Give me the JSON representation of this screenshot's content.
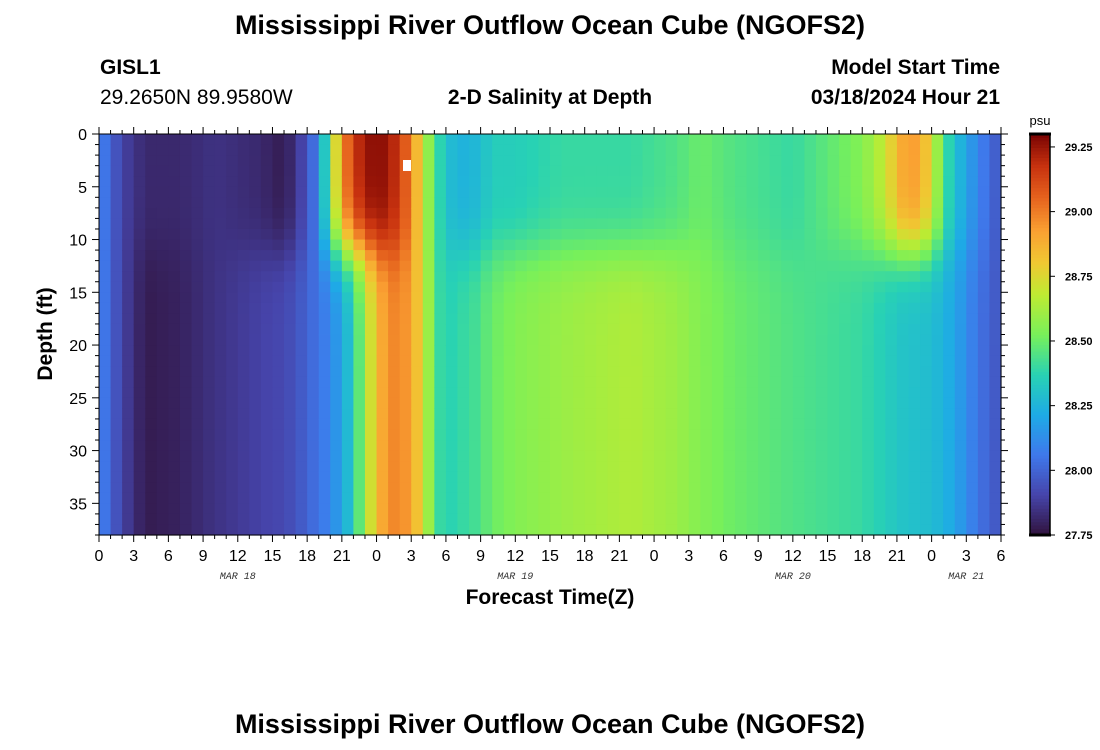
{
  "page": {
    "title_top": "Mississippi River Outflow Ocean Cube (NGOFS2)",
    "title_bottom": "Mississippi River Outflow Ocean Cube (NGOFS2)",
    "station_id": "GISL1",
    "station_coords": "29.2650N  89.9580W",
    "plot_title": "2-D Salinity at Depth",
    "model_start_label": "Model Start Time",
    "model_start_value": "03/18/2024 Hour 21"
  },
  "chart_data": {
    "type": "heatmap",
    "title": "2-D Salinity at Depth",
    "xlabel": "Forecast Time(Z)",
    "ylabel": "Depth (ft)",
    "xlim": [
      0,
      78
    ],
    "ylim": [
      38,
      0
    ],
    "x_tick_labels": [
      "0",
      "3",
      "6",
      "9",
      "12",
      "15",
      "18",
      "21",
      "0",
      "3",
      "6",
      "9",
      "12",
      "15",
      "18",
      "21",
      "0",
      "3",
      "6",
      "9",
      "12",
      "15",
      "18",
      "21",
      "0",
      "3",
      "6"
    ],
    "y_ticks": [
      0,
      5,
      10,
      15,
      20,
      25,
      30,
      35
    ],
    "date_labels": [
      {
        "label": "MAR 18",
        "hours": 12
      },
      {
        "label": "MAR 19",
        "hours": 36
      },
      {
        "label": "MAR 20",
        "hours": 60
      },
      {
        "label": "MAR 21",
        "hours": 75
      }
    ],
    "colorbar": {
      "unit": "psu",
      "min": 27.75,
      "max": 29.3,
      "ticks": [
        "27.75",
        "28.00",
        "28.25",
        "28.50",
        "28.75",
        "29.00",
        "29.25"
      ],
      "tick_values": [
        27.75,
        28.0,
        28.25,
        28.5,
        28.75,
        29.0,
        29.25
      ]
    },
    "series_time_hours": [
      0,
      1,
      2,
      4,
      7,
      10,
      14,
      16,
      17,
      18,
      19,
      20,
      21,
      22,
      23,
      24,
      25,
      26,
      27,
      28,
      29,
      30,
      31,
      32,
      33,
      34,
      36,
      40,
      46,
      50,
      52,
      55,
      60,
      66,
      68,
      69,
      70,
      71,
      72,
      73,
      74,
      76,
      78
    ],
    "surface_salinity_psu": [
      28.1,
      28.0,
      27.9,
      27.82,
      27.82,
      27.85,
      27.82,
      27.78,
      27.85,
      27.95,
      28.1,
      28.55,
      28.95,
      29.15,
      29.25,
      29.28,
      29.25,
      29.15,
      29.0,
      28.7,
      28.45,
      28.3,
      28.25,
      28.25,
      28.28,
      28.35,
      28.35,
      28.4,
      28.4,
      28.45,
      28.5,
      28.45,
      28.4,
      28.55,
      28.7,
      28.85,
      28.95,
      28.9,
      28.75,
      28.45,
      28.3,
      28.1,
      27.95
    ],
    "bottom_salinity_psu": [
      28.1,
      28.0,
      27.9,
      27.78,
      27.8,
      27.85,
      27.9,
      27.92,
      27.95,
      28.0,
      28.05,
      28.1,
      28.2,
      28.35,
      28.6,
      28.85,
      28.95,
      29.0,
      28.9,
      28.75,
      28.45,
      28.35,
      28.4,
      28.4,
      28.45,
      28.5,
      28.55,
      28.6,
      28.65,
      28.6,
      28.55,
      28.5,
      28.45,
      28.4,
      28.35,
      28.32,
      28.3,
      28.3,
      28.28,
      28.25,
      28.2,
      28.05,
      27.95
    ]
  }
}
